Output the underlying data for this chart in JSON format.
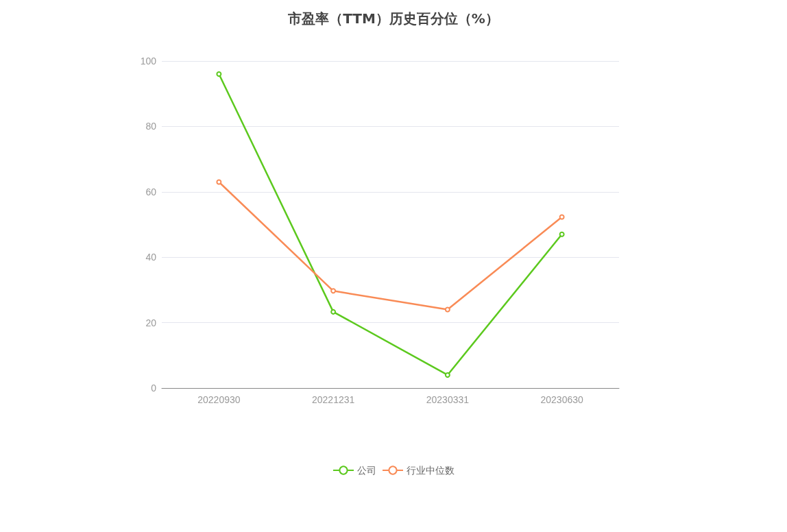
{
  "chart_data": {
    "type": "line",
    "title": "市盈率（TTM）历史百分位（%）",
    "categories": [
      "20220930",
      "20221231",
      "20230331",
      "20230630"
    ],
    "series": [
      {
        "name": "公司",
        "color": "#5cc91e",
        "values": [
          96,
          23.3,
          4,
          47
        ]
      },
      {
        "name": "行业中位数",
        "color": "#f98b56",
        "values": [
          63,
          29.7,
          24,
          52.3
        ]
      }
    ],
    "ylim": [
      0,
      100
    ],
    "yticks": [
      0,
      20,
      40,
      60,
      80,
      100
    ],
    "grid": "y",
    "legend": "bottom",
    "marker": "circle",
    "line_style": "solid"
  }
}
